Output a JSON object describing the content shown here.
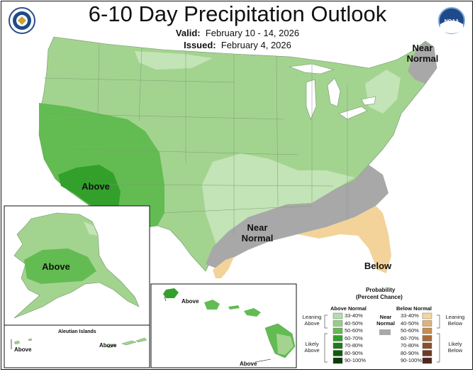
{
  "title": "6-10 Day Precipitation Outlook",
  "valid": {
    "label": "Valid:",
    "value": "February 10 - 14, 2026"
  },
  "issued": {
    "label": "Issued:",
    "value": "February 4, 2026"
  },
  "logos": {
    "left": "doc-seal-icon",
    "right": "noaa-logo-icon",
    "noaa_text": "NOAA"
  },
  "map_labels": {
    "near_normal_ne": "Near Normal",
    "above_sw": "Above",
    "near_normal_south": "Near Normal",
    "below_se": "Below",
    "above_alaska": "Above",
    "above_hawaii_1": "Above",
    "above_hawaii_2": "Above",
    "above_aleutian_1": "Above",
    "above_aleutian_2": "Above",
    "aleutian_islands": "Aleutian Islands"
  },
  "legend": {
    "title": "Probability",
    "subtitle": "(Percent Chance)",
    "above_header": "Above Normal",
    "near_header": "Near Normal",
    "below_header": "Below Normal",
    "leaning_above": "Leaning Above",
    "likely_above": "Likely Above",
    "leaning_below": "Leaning Below",
    "likely_below": "Likely Below",
    "bins": [
      "33-40%",
      "40-50%",
      "50-60%",
      "60-70%",
      "70-80%",
      "80-90%",
      "90-100%"
    ],
    "above_colors": [
      "#b3dfae",
      "#95cf86",
      "#63bc52",
      "#33a02c",
      "#1f7a1a",
      "#125910",
      "#0a3d08"
    ],
    "below_colors": [
      "#f5d6a0",
      "#e0b276",
      "#c98d52",
      "#a86b3a",
      "#8a5030",
      "#6d3a26",
      "#4f2819"
    ],
    "near_color": "#a8a8a8"
  }
}
